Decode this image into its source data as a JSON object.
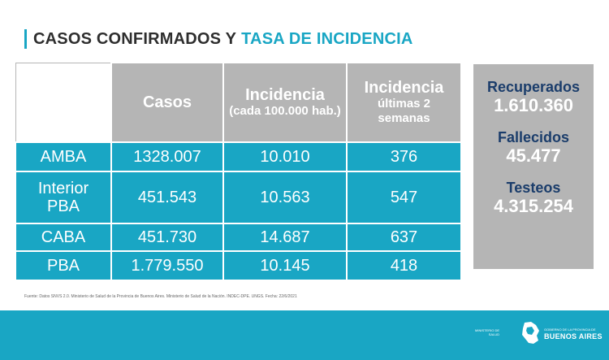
{
  "title": {
    "part1": "CASOS CONFIRMADOS Y",
    "part2": "TASA DE INCIDENCIA"
  },
  "table": {
    "headers": {
      "casos": "Casos",
      "incidencia": "Incidencia",
      "incidencia_sub": "(cada 100.000 hab.)",
      "incidencia2_line1": "Incidencia",
      "incidencia2_line2": "últimas 2 semanas"
    },
    "rows": [
      {
        "region": "AMBA",
        "casos": "1328.007",
        "incidencia": "10.010",
        "incidencia2": "376"
      },
      {
        "region": "Interior PBA",
        "casos": "451.543",
        "incidencia": "10.563",
        "incidencia2": "547"
      },
      {
        "region": "CABA",
        "casos": "451.730",
        "incidencia": "14.687",
        "incidencia2": "637"
      },
      {
        "region": "PBA",
        "casos": "1.779.550",
        "incidencia": "10.145",
        "incidencia2": "418"
      }
    ]
  },
  "side": {
    "recuperados_label": "Recuperados",
    "recuperados_value": "1.610.360",
    "fallecidos_label": "Fallecidos",
    "fallecidos_value": "45.477",
    "testeos_label": "Testeos",
    "testeos_value": "4.315.254"
  },
  "source": "Fuente: Datos SNVS 2.0. Ministerio de Salud de la Provincia de Buenos Aires. Ministerio de Salud de la Nación. INDEC-DPE. UNGS. Fecha: 22/6/2021",
  "footer": {
    "ministry": "MINISTERIO DE SALUD",
    "gov_small": "GOBIERNO DE LA PROVINCIA DE",
    "gov_big": "BUENOS AIRES"
  },
  "colors": {
    "accent": "#19a6c4",
    "gray": "#b5b5b5",
    "navy": "#1b3d6b"
  }
}
